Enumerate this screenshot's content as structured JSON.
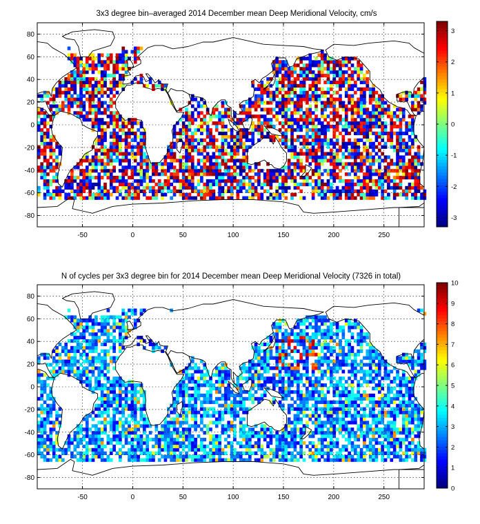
{
  "chart_data": [
    {
      "type": "heatmap",
      "title": "3x3 degree bin–averaged 2014 December mean Deep Meridional Velocity, cm/s",
      "xlabel": "",
      "ylabel": "",
      "xlim": [
        -95,
        290
      ],
      "ylim": [
        -90,
        90
      ],
      "x_ticks": [
        -50,
        0,
        50,
        100,
        150,
        200,
        250
      ],
      "y_ticks": [
        -80,
        -60,
        -40,
        -20,
        0,
        20,
        40,
        60,
        80
      ],
      "grid": true,
      "bin_size_deg": 3,
      "colormap": "jet",
      "colorbar": {
        "range": [
          -3.3,
          3.3
        ],
        "ticks": [
          -3,
          -2,
          -1,
          0,
          1,
          2,
          3
        ]
      },
      "note": "values reproduced as dense bins over ocean areas with strong positive/negative scatter"
    },
    {
      "type": "heatmap",
      "title": "N of cycles per 3x3 degree bin for 2014 December mean Deep Meridional Velocity (7326 in total)",
      "xlabel": "",
      "ylabel": "",
      "xlim": [
        -95,
        290
      ],
      "ylim": [
        -90,
        90
      ],
      "x_ticks": [
        -50,
        0,
        50,
        100,
        150,
        200,
        250
      ],
      "y_ticks": [
        -80,
        -60,
        -40,
        -20,
        0,
        20,
        40,
        60,
        80
      ],
      "grid": true,
      "bin_size_deg": 3,
      "colormap": "jet",
      "colorbar": {
        "range": [
          0,
          10
        ],
        "ticks": [
          0,
          1,
          2,
          3,
          4,
          5,
          6,
          7,
          8,
          9,
          10
        ]
      },
      "total_cycles": 7326
    }
  ]
}
